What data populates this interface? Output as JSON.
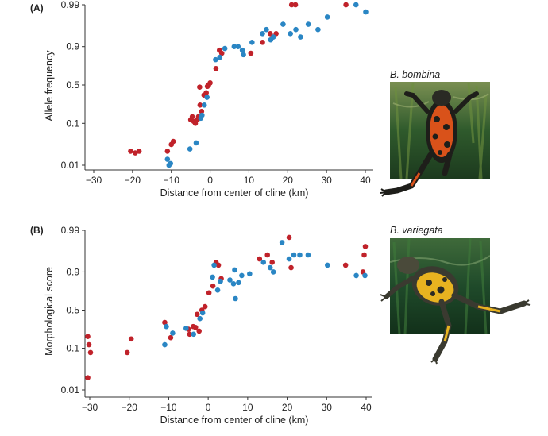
{
  "colors": {
    "red": "#c0222a",
    "blue": "#2a86c4"
  },
  "chart_data": [
    {
      "type": "scatter",
      "panel_label": "(A)",
      "title": "",
      "xlabel": "Distance from center of cline (km)",
      "ylabel": "Allele frequency",
      "scale_y": "logit",
      "xlim": [
        -32,
        41
      ],
      "xticks": [
        -30,
        -20,
        -10,
        0,
        10,
        20,
        30,
        40
      ],
      "yticks": [
        0.01,
        0.1,
        0.5,
        0.9,
        0.99
      ],
      "ytick_labels": [
        "0.01",
        "0.1",
        "0.5",
        "0.9",
        "0.99"
      ],
      "grid": false,
      "photo_caption": "B. bombina",
      "series": [
        {
          "color": "red",
          "x": [
            -20.5,
            -19.3,
            -18.3,
            -11,
            -10,
            -9.5,
            -5,
            -4.6,
            -4.2,
            -3.8,
            -3.3,
            -3,
            -2.7,
            -2.2,
            -2.6,
            -1.6,
            -1,
            -0.7,
            -0.4,
            0,
            1.5,
            2.4,
            3,
            10.5,
            13.5,
            15.5,
            16.2,
            17,
            21,
            22,
            35
          ],
          "y": [
            0.022,
            0.02,
            0.022,
            0.022,
            0.032,
            0.038,
            0.12,
            0.14,
            0.11,
            0.1,
            0.12,
            0.14,
            0.47,
            0.18,
            0.24,
            0.36,
            0.39,
            0.48,
            0.5,
            0.53,
            0.72,
            0.88,
            0.86,
            0.86,
            0.92,
            0.95,
            0.94,
            0.95,
            0.99,
            0.99,
            0.99
          ]
        },
        {
          "color": "blue",
          "x": [
            -11,
            -10.6,
            -10.2,
            -5.2,
            -3.6,
            -2.4,
            -2.1,
            -1.5,
            -0.8,
            1.4,
            2.5,
            3.8,
            6.2,
            7.2,
            8.3,
            8.6,
            10.8,
            13.5,
            14.5,
            15.6,
            16.3,
            18.8,
            20.7,
            22.1,
            23.3,
            25.3,
            27.8,
            30.2,
            37.6,
            40.1
          ],
          "y": [
            0.014,
            0.01,
            0.011,
            0.025,
            0.035,
            0.13,
            0.15,
            0.24,
            0.33,
            0.81,
            0.83,
            0.89,
            0.9,
            0.9,
            0.88,
            0.85,
            0.92,
            0.95,
            0.96,
            0.93,
            0.94,
            0.97,
            0.95,
            0.96,
            0.94,
            0.97,
            0.96,
            0.98,
            0.99,
            0.985
          ]
        }
      ]
    },
    {
      "type": "scatter",
      "panel_label": "(B)",
      "title": "",
      "xlabel": "Distance from center of cline (km)",
      "ylabel": "Morphological score",
      "scale_y": "logit",
      "xlim": [
        -31,
        41
      ],
      "xticks": [
        -30,
        -20,
        -10,
        0,
        10,
        20,
        30,
        40
      ],
      "yticks": [
        0.01,
        0.1,
        0.5,
        0.9,
        0.99
      ],
      "ytick_labels": [
        "0.01",
        "0.1",
        "0.5",
        "0.9",
        "0.99"
      ],
      "grid": false,
      "photo_caption": "B. variegata",
      "series": [
        {
          "color": "red",
          "x": [
            -30.5,
            -30.2,
            -29.8,
            -30.5,
            -20.5,
            -19.5,
            -11,
            -9.5,
            -5,
            -4.7,
            -3.8,
            -3.2,
            -2.8,
            -2.3,
            -1.6,
            -0.8,
            0.2,
            1.2,
            2,
            2.6,
            3.3,
            13,
            15,
            16.2,
            20.5,
            21,
            34.8,
            39.2,
            39.5,
            39.8
          ],
          "y": [
            0.18,
            0.12,
            0.08,
            0.02,
            0.08,
            0.16,
            0.33,
            0.17,
            0.25,
            0.2,
            0.28,
            0.27,
            0.44,
            0.23,
            0.5,
            0.55,
            0.73,
            0.8,
            0.94,
            0.93,
            0.86,
            0.95,
            0.96,
            0.94,
            0.985,
            0.92,
            0.93,
            0.9,
            0.96,
            0.975
          ]
        },
        {
          "color": "blue",
          "x": [
            -11,
            -10.6,
            -9,
            -5.6,
            -3.7,
            -2.1,
            -1.4,
            1.1,
            1.5,
            2.4,
            3.1,
            5.5,
            6.4,
            6.7,
            6.9,
            7.7,
            8.5,
            10.5,
            14,
            15.7,
            16.5,
            18.7,
            20.5,
            21.7,
            23.2,
            25.3,
            30.2,
            37.5,
            39.7
          ],
          "y": [
            0.12,
            0.28,
            0.21,
            0.26,
            0.2,
            0.38,
            0.46,
            0.87,
            0.93,
            0.76,
            0.84,
            0.85,
            0.82,
            0.91,
            0.66,
            0.83,
            0.88,
            0.89,
            0.94,
            0.92,
            0.9,
            0.98,
            0.95,
            0.96,
            0.96,
            0.96,
            0.93,
            0.88,
            0.88
          ]
        }
      ]
    }
  ]
}
